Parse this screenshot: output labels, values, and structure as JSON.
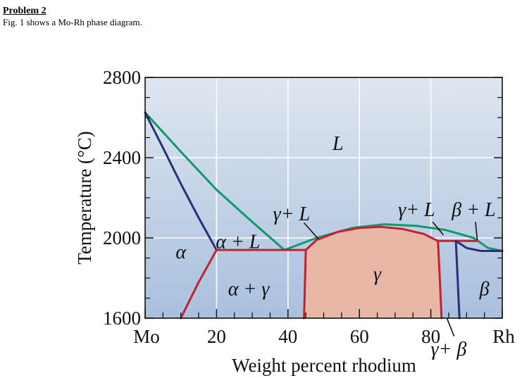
{
  "header": {
    "title": "Problem 2",
    "description": "Fig. 1 shows a Mo-Rh phase diagram."
  },
  "colors": {
    "background_top": "#dfe6f0",
    "background_bottom": "#a9c0de",
    "grid": "#ffffff",
    "liquidus": "#0e9a6e",
    "solidus_alpha": "#2b2f7a",
    "gamma_boundary": "#c0232d",
    "gamma_fill": "#e8b7a6",
    "beta_boundary": "#2b2f7a"
  },
  "chart_data": {
    "type": "phase-diagram",
    "xlabel": "Weight percent rhodium",
    "ylabel": "Temperature (°C)",
    "xlim": [
      0,
      100
    ],
    "ylim": [
      1600,
      2800
    ],
    "x_ticks": [
      {
        "value": 0,
        "label": "Mo"
      },
      {
        "value": 20,
        "label": "20"
      },
      {
        "value": 40,
        "label": "40"
      },
      {
        "value": 60,
        "label": "60"
      },
      {
        "value": 80,
        "label": "80"
      },
      {
        "value": 100,
        "label": "Rh"
      }
    ],
    "y_ticks": [
      {
        "value": 1600,
        "label": "1600"
      },
      {
        "value": 2000,
        "label": "2000"
      },
      {
        "value": 2400,
        "label": "2400"
      },
      {
        "value": 2800,
        "label": "2800"
      }
    ],
    "grid": true,
    "curves": [
      {
        "id": "liquidus-left",
        "color_key": "liquidus",
        "points": [
          [
            0,
            2625
          ],
          [
            10,
            2430
          ],
          [
            20,
            2240
          ],
          [
            30,
            2080
          ],
          [
            39,
            1940
          ]
        ]
      },
      {
        "id": "liquidus-right",
        "color_key": "liquidus",
        "points": [
          [
            39,
            1940
          ],
          [
            48,
            2000
          ],
          [
            58,
            2050
          ],
          [
            67,
            2068
          ],
          [
            76,
            2060
          ],
          [
            84,
            2040
          ],
          [
            92,
            2000
          ],
          [
            96,
            1950
          ],
          [
            100,
            1935
          ]
        ]
      },
      {
        "id": "alpha-solidus",
        "color_key": "solidus_alpha",
        "points": [
          [
            0,
            2625
          ],
          [
            5,
            2450
          ],
          [
            10,
            2270
          ],
          [
            15,
            2100
          ],
          [
            20,
            1940
          ]
        ]
      },
      {
        "id": "alpha-solvus",
        "color_key": "gamma_boundary",
        "points": [
          [
            20,
            1940
          ],
          [
            15,
            1780
          ],
          [
            10,
            1600
          ]
        ]
      },
      {
        "id": "eutectic-line",
        "color_key": "gamma_boundary",
        "points": [
          [
            20,
            1940
          ],
          [
            45,
            1940
          ]
        ]
      },
      {
        "id": "gamma-boundary",
        "color_key": "gamma_boundary",
        "points": [
          [
            44.5,
            1600
          ],
          [
            44.8,
            1800
          ],
          [
            45,
            1940
          ],
          [
            48,
            1990
          ],
          [
            54,
            2030
          ],
          [
            60,
            2050
          ],
          [
            66,
            2055
          ],
          [
            72,
            2045
          ],
          [
            78,
            2020
          ],
          [
            82,
            1985
          ],
          [
            82.5,
            1800
          ],
          [
            83,
            1600
          ]
        ]
      },
      {
        "id": "peritectic-line",
        "color_key": "gamma_boundary",
        "points": [
          [
            82,
            1985
          ],
          [
            93,
            1985
          ]
        ]
      },
      {
        "id": "beta-solidus",
        "color_key": "beta_boundary",
        "points": [
          [
            87,
            1985
          ],
          [
            90,
            1950
          ],
          [
            94,
            1935
          ],
          [
            100,
            1935
          ]
        ]
      },
      {
        "id": "beta-solvus",
        "color_key": "beta_boundary",
        "points": [
          [
            87,
            1985
          ],
          [
            87.5,
            1800
          ],
          [
            88,
            1600
          ]
        ]
      }
    ],
    "labels": [
      {
        "text": "L",
        "x": 54,
        "y": 2470,
        "style": "italic"
      },
      {
        "text": "γ+ L",
        "x": 41,
        "y": 2120,
        "style": "italic"
      },
      {
        "text": "γ+ L",
        "x": 76,
        "y": 2140,
        "style": "italic"
      },
      {
        "text": "β + L",
        "x": 92,
        "y": 2140,
        "style": "italic"
      },
      {
        "text": "α + L",
        "x": 26,
        "y": 1980,
        "style": "italic"
      },
      {
        "text": "α",
        "x": 10,
        "y": 1930,
        "style": "italic"
      },
      {
        "text": "γ",
        "x": 65,
        "y": 1820,
        "style": "italic"
      },
      {
        "text": "α + γ",
        "x": 29,
        "y": 1745,
        "style": "italic"
      },
      {
        "text": "β",
        "x": 95,
        "y": 1745,
        "style": "italic"
      },
      {
        "text": "γ+ β",
        "x": 85,
        "y": 1445,
        "style": "italic"
      }
    ],
    "leaders": [
      {
        "from": [
          44.5,
          2075
        ],
        "to": [
          48.5,
          1995
        ]
      },
      {
        "from": [
          80.5,
          2080
        ],
        "to": [
          83.5,
          2015
        ]
      },
      {
        "from": [
          92.5,
          2080
        ],
        "to": [
          93.0,
          1990
        ]
      },
      {
        "from": [
          86.5,
          1510
        ],
        "to": [
          84.5,
          1600
        ]
      }
    ]
  }
}
